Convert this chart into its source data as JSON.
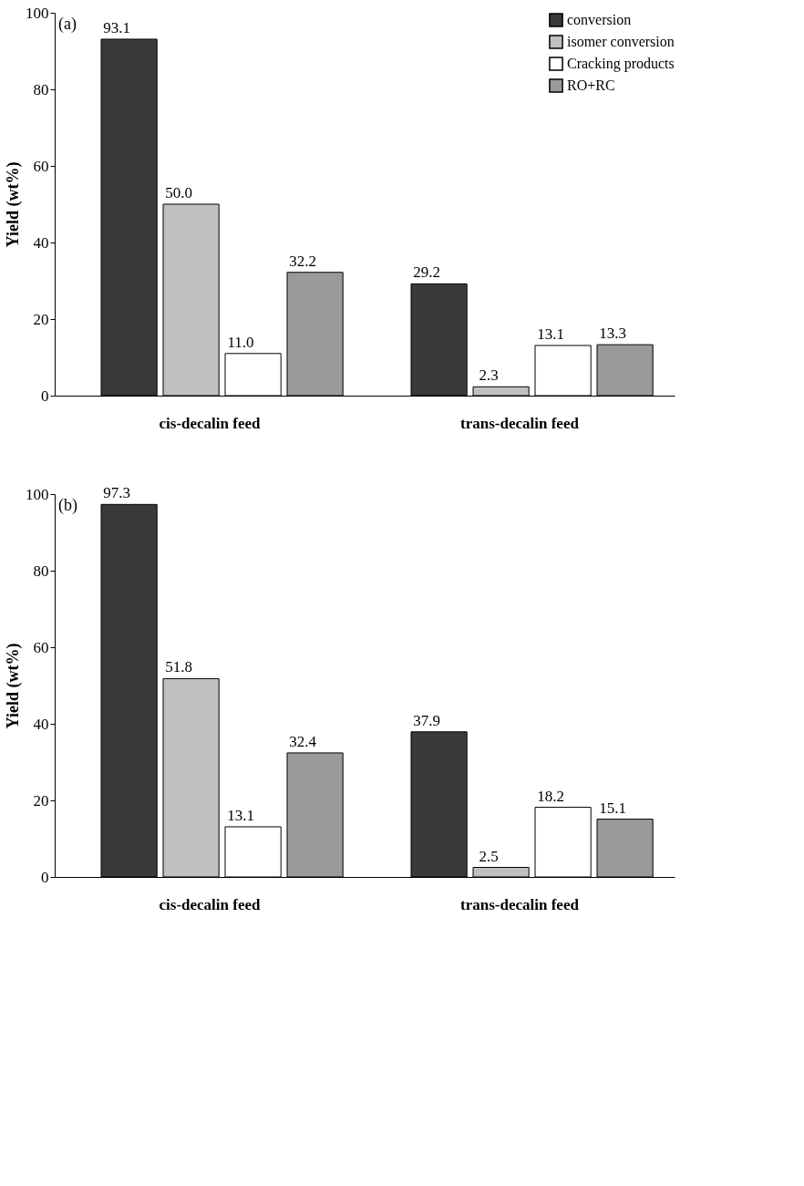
{
  "chart_data": [
    {
      "type": "bar",
      "ylabel": "Yield (wt%)",
      "categories": [
        "cis-decalin feed",
        "trans-decalin feed"
      ],
      "ylim": [
        0,
        100
      ],
      "yticks": [
        0,
        20,
        40,
        60,
        80,
        100
      ],
      "grid": false,
      "legend": "top right",
      "annotations": [
        "(a)"
      ],
      "series": [
        {
          "name": "conversion",
          "color": "#3a3a3a",
          "values": [
            93.1,
            29.2
          ],
          "value_labels": [
            "93.1",
            "29.2"
          ]
        },
        {
          "name": "isomer conversion",
          "color": "#c0c0c0",
          "values": [
            50.0,
            2.3
          ],
          "value_labels": [
            "50.0",
            "2.3"
          ]
        },
        {
          "name": "Cracking products",
          "color": "#ffffff",
          "values": [
            11.0,
            13.1
          ],
          "value_labels": [
            "11.0",
            "13.1"
          ]
        },
        {
          "name": "RO+RC",
          "color": "#9a9a9a",
          "values": [
            32.2,
            13.3
          ],
          "value_labels": [
            "32.2",
            "13.3"
          ]
        }
      ]
    },
    {
      "type": "bar",
      "ylabel": "Yield (wt%)",
      "categories": [
        "cis-decalin feed",
        "trans-decalin feed"
      ],
      "ylim": [
        0,
        100
      ],
      "yticks": [
        0,
        20,
        40,
        60,
        80,
        100
      ],
      "grid": false,
      "legend": "top right",
      "annotations": [
        "(b)"
      ],
      "series": [
        {
          "name": "conversion",
          "color": "#3a3a3a",
          "values": [
            97.3,
            37.9
          ],
          "value_labels": [
            "97.3",
            "37.9"
          ]
        },
        {
          "name": "isomer conversion",
          "color": "#c0c0c0",
          "values": [
            51.8,
            2.5
          ],
          "value_labels": [
            "51.8",
            "2.5"
          ]
        },
        {
          "name": "Cracking products",
          "color": "#ffffff",
          "values": [
            13.1,
            18.2
          ],
          "value_labels": [
            "13.1",
            "18.2"
          ]
        },
        {
          "name": "RO+RC",
          "color": "#9a9a9a",
          "values": [
            32.4,
            15.1
          ],
          "value_labels": [
            "32.4",
            "15.1"
          ]
        }
      ]
    }
  ]
}
